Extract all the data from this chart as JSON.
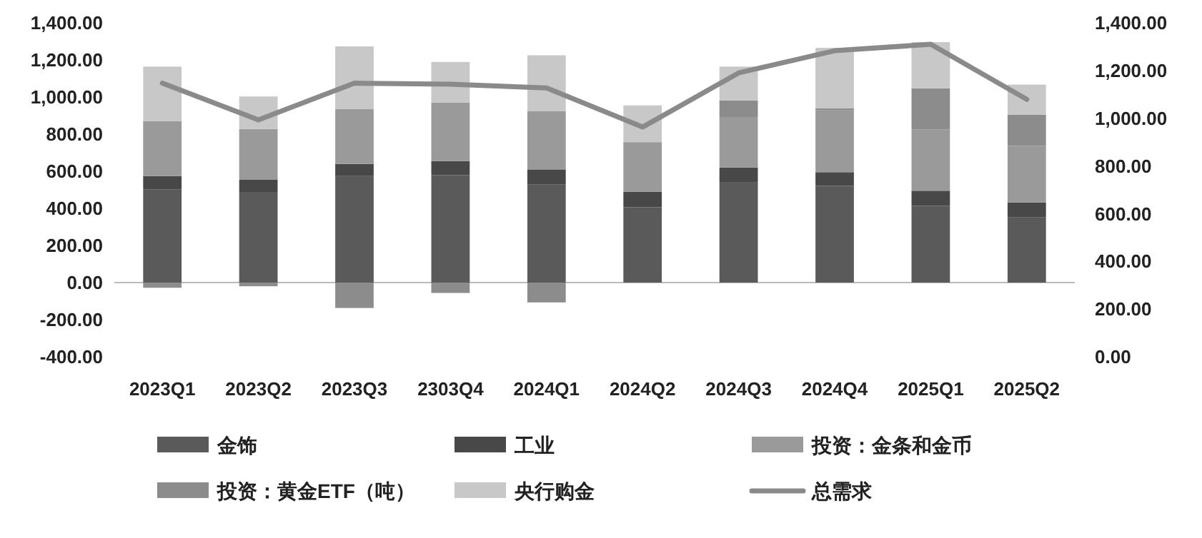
{
  "chart_data": {
    "type": "bar",
    "stacked": true,
    "categories": [
      "2023Q1",
      "2023Q2",
      "2023Q3",
      "2303Q4",
      "2024Q1",
      "2024Q2",
      "2024Q3",
      "2024Q4",
      "2025Q1",
      "2025Q2"
    ],
    "series": [
      {
        "name": "金饰",
        "color": "#5a5a5a",
        "values": [
          503,
          485,
          574,
          579,
          528,
          406,
          539,
          521,
          414,
          351
        ]
      },
      {
        "name": "工业",
        "color": "#484848",
        "values": [
          71,
          69,
          66,
          76,
          82,
          84,
          81,
          74,
          81,
          81
        ]
      },
      {
        "name": "投资：金条和金币",
        "color": "#9a9a9a",
        "values": [
          297,
          274,
          295,
          315,
          315,
          267,
          269,
          335,
          331,
          305
        ]
      },
      {
        "name": "投资：黄金ETF（吨）",
        "color": "#8c8c8c",
        "values": [
          -28,
          -20,
          -137,
          -56,
          -107,
          0,
          92,
          10,
          221,
          167
        ]
      },
      {
        "name": "央行购金",
        "color": "#c8c8c8",
        "values": [
          293,
          175,
          338,
          219,
          300,
          198,
          183,
          325,
          249,
          163
        ]
      },
      {
        "name": "总需求",
        "type": "line",
        "axis": "y2",
        "color": "#8a8a8a",
        "values": [
          1147,
          993,
          1147,
          1143,
          1127,
          963,
          1190,
          1283,
          1310,
          1079
        ]
      }
    ],
    "ylim": [
      -400,
      1400
    ],
    "yticks": [
      {
        "value": -400,
        "label": "-400.00"
      },
      {
        "value": -200,
        "label": "-200.00"
      },
      {
        "value": 0,
        "label": "0.00"
      },
      {
        "value": 200,
        "label": "200.00"
      },
      {
        "value": 400,
        "label": "400.00"
      },
      {
        "value": 600,
        "label": "600.00"
      },
      {
        "value": 800,
        "label": "800.00"
      },
      {
        "value": 1000,
        "label": "1,000.00"
      },
      {
        "value": 1200,
        "label": "1,200.00"
      },
      {
        "value": 1400,
        "label": "1,400.00"
      }
    ],
    "y2lim": [
      0,
      1400
    ],
    "y2ticks": [
      {
        "value": 0,
        "label": "0.00"
      },
      {
        "value": 200,
        "label": "200.00"
      },
      {
        "value": 400,
        "label": "400.00"
      },
      {
        "value": 600,
        "label": "600.00"
      },
      {
        "value": 800,
        "label": "800.00"
      },
      {
        "value": 1000,
        "label": "1,000.00"
      },
      {
        "value": 1200,
        "label": "1,200.00"
      },
      {
        "value": 1400,
        "label": "1,400.00"
      }
    ],
    "legend": "bottom"
  }
}
